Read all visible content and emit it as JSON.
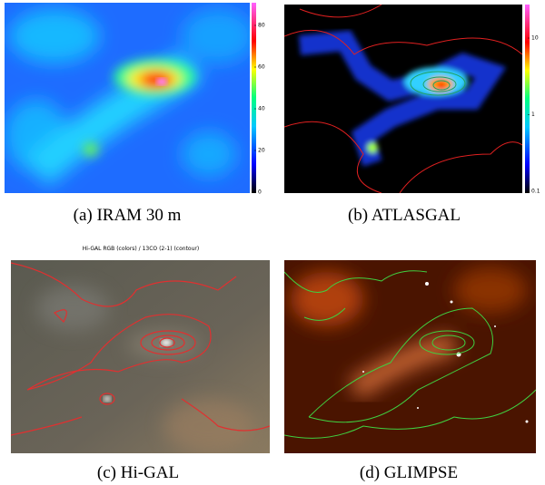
{
  "panels": [
    {
      "caption": "(a) IRAM 30 m",
      "colorbar_ticks": [
        "0",
        "20",
        "40",
        "60",
        "80"
      ]
    },
    {
      "caption": "(b) ATLASGAL",
      "colorbar_ticks": [
        "0.1",
        "1",
        "10"
      ]
    },
    {
      "caption": "(c) Hi-GAL",
      "title": "Hi-GAL RGB (colors) / 13CO (2-1) (contour)"
    },
    {
      "caption": "(d) GLIMPSE"
    }
  ]
}
